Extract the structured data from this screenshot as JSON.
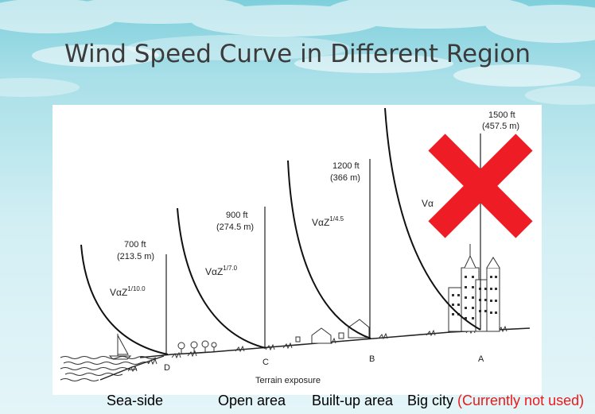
{
  "slide": {
    "title": "Wind Speed Curve in Different Region"
  },
  "figure": {
    "regions": [
      {
        "letter": "D",
        "height": "700 ft",
        "height_metric": "(213.5 m)",
        "law_base": "VαZ",
        "law_exp": "1/10.0"
      },
      {
        "letter": "C",
        "height": "900 ft",
        "height_metric": "(274.5 m)",
        "law_base": "VαZ",
        "law_exp": "1/7.0"
      },
      {
        "letter": "B",
        "height": "1200 ft",
        "height_metric": "(366 m)",
        "law_base": "VαZ",
        "law_exp": "1/4.5"
      },
      {
        "letter": "A",
        "height": "1500 ft",
        "height_metric": "(457.5 m)",
        "law_base": "Vα"
      }
    ],
    "axis_label": "Terrain exposure",
    "overlay_icon": "cross-out-icon",
    "overlay_color": "#ee1c24"
  },
  "captions": {
    "sea_side": "Sea-side",
    "open_area": "Open area",
    "built_up": "Built-up area",
    "big_city": "Big city",
    "big_city_note": "(Currently not used)",
    "note_color": "#e81b1b"
  }
}
